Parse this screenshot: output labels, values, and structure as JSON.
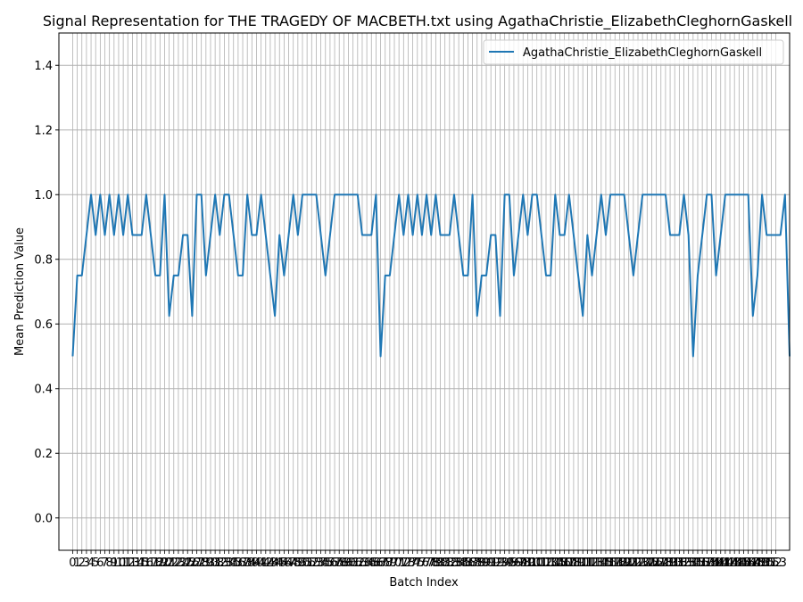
{
  "chart_data": {
    "type": "line",
    "title": "Signal Representation for THE TRAGEDY OF MACBETH.txt using AgathaChristie_ElizabethCleghornGaskell",
    "xlabel": "Batch Index",
    "ylabel": "Mean Prediction Value",
    "xlim": [
      -3,
      156
    ],
    "ylim": [
      -0.1,
      1.5
    ],
    "y_ticks": [
      0.0,
      0.2,
      0.4,
      0.6,
      0.8,
      1.0,
      1.2,
      1.4
    ],
    "y_tick_labels": [
      "0.0",
      "0.2",
      "0.4",
      "0.6",
      "0.8",
      "1.0",
      "1.2",
      "1.4"
    ],
    "x_tick_start": 0,
    "x_tick_end": 153,
    "grid": true,
    "legend_position": "top-right",
    "colors": {
      "series": "#1f77b4",
      "grid": "#b0b0b0"
    },
    "series": [
      {
        "name": "AgathaChristie_ElizabethCleghornGaskell",
        "values": [
          0.5,
          0.75,
          0.75,
          0.875,
          1.0,
          0.875,
          1.0,
          0.875,
          1.0,
          0.875,
          1.0,
          0.875,
          1.0,
          0.875,
          0.875,
          0.875,
          1.0,
          0.875,
          0.75,
          0.75,
          1.0,
          0.625,
          0.75,
          0.75,
          0.875,
          0.875,
          0.625,
          1.0,
          1.0,
          0.75,
          0.875,
          1.0,
          0.875,
          1.0,
          1.0,
          0.875,
          0.75,
          0.75,
          1.0,
          0.875,
          0.875,
          1.0,
          0.875,
          0.75,
          0.625,
          0.875,
          0.75,
          0.875,
          1.0,
          0.875,
          1.0,
          1.0,
          1.0,
          1.0,
          0.875,
          0.75,
          0.875,
          1.0,
          1.0,
          1.0,
          1.0,
          1.0,
          1.0,
          0.875,
          0.875,
          0.875,
          1.0,
          0.5,
          0.75,
          0.75,
          0.875,
          1.0,
          0.875,
          1.0,
          0.875,
          1.0,
          0.875,
          1.0,
          0.875,
          1.0,
          0.875,
          0.875,
          0.875,
          1.0,
          0.875,
          0.75,
          0.75,
          1.0,
          0.625,
          0.75,
          0.75,
          0.875,
          0.875,
          0.625,
          1.0,
          1.0,
          0.75,
          0.875,
          1.0,
          0.875,
          1.0,
          1.0,
          0.875,
          0.75,
          0.75,
          1.0,
          0.875,
          0.875,
          1.0,
          0.875,
          0.75,
          0.625,
          0.875,
          0.75,
          0.875,
          1.0,
          0.875,
          1.0,
          1.0,
          1.0,
          1.0,
          0.875,
          0.75,
          0.875,
          1.0,
          1.0,
          1.0,
          1.0,
          1.0,
          1.0,
          0.875,
          0.875,
          0.875,
          1.0,
          0.875,
          0.5,
          0.75,
          0.875,
          1.0,
          1.0,
          0.75,
          0.875,
          1.0,
          1.0,
          1.0,
          1.0,
          1.0,
          1.0,
          0.625,
          0.75,
          1.0,
          0.875,
          0.875,
          0.875,
          0.875,
          1.0,
          0.5
        ]
      }
    ]
  }
}
